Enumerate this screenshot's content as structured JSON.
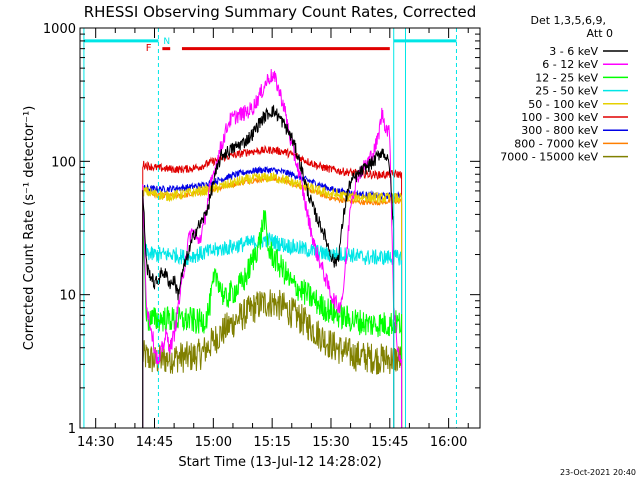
{
  "chart_data": {
    "type": "line",
    "title": "RHESSI Observing Summary Count Rates, Corrected",
    "xlabel": "Start Time (13-Jul-12 14:28:02)",
    "ylabel": "Corrected Count Rate (s⁻¹ detector⁻¹)",
    "yscale": "log",
    "xlim": [
      "14:26",
      "16:08"
    ],
    "ylim": [
      1,
      1000
    ],
    "x_ticks": [
      "14:30",
      "14:45",
      "15:00",
      "15:15",
      "15:30",
      "15:45",
      "16:00"
    ],
    "y_ticks": [
      "1",
      "10",
      "100",
      "1000"
    ],
    "grid": false,
    "legend_position": "top-right",
    "legend_header": [
      "Det 1,3,5,6,9,",
      "Att 0"
    ],
    "timestamp": "23-Oct-2021 20:40",
    "annotations": {
      "flare_flag": "F",
      "night_flag": "N"
    },
    "flag_bars": [
      {
        "name": "cyan-bar-left",
        "color": "#00e6e6",
        "x": [
          "14:27",
          "14:46"
        ],
        "y": 800
      },
      {
        "name": "cyan-bar-right",
        "color": "#00e6e6",
        "x": [
          "15:46",
          "16:02"
        ],
        "y": 800
      },
      {
        "name": "red-bar-a",
        "color": "#e00000",
        "x": [
          "14:47",
          "14:49"
        ],
        "y": 700
      },
      {
        "name": "red-bar-b",
        "color": "#e00000",
        "x": [
          "14:52",
          "15:45"
        ],
        "y": 700
      }
    ],
    "vlines": [
      {
        "x": "14:27",
        "style": "solid",
        "color": "#00e6e6"
      },
      {
        "x": "14:46",
        "style": "dashed",
        "color": "#00e6e6"
      },
      {
        "x": "15:46",
        "style": "solid",
        "color": "#00e6e6"
      },
      {
        "x": "15:49",
        "style": "solid",
        "color": "#00e6e6"
      },
      {
        "x": "16:02",
        "style": "dashed",
        "color": "#00e6e6"
      }
    ],
    "series": [
      {
        "name": "3 - 6 keV",
        "color": "#000000",
        "noise": 0.05,
        "points": [
          [
            "14:42",
            60
          ],
          [
            "14:43",
            16
          ],
          [
            "14:44",
            14
          ],
          [
            "14:45",
            12
          ],
          [
            "14:46",
            13
          ],
          [
            "14:47",
            15
          ],
          [
            "14:48",
            14
          ],
          [
            "14:49",
            12
          ],
          [
            "14:50",
            13
          ],
          [
            "14:51",
            10
          ],
          [
            "14:52",
            14
          ],
          [
            "14:53",
            18
          ],
          [
            "14:54",
            22
          ],
          [
            "14:55",
            28
          ],
          [
            "14:56",
            32
          ],
          [
            "14:57",
            35
          ],
          [
            "14:58",
            40
          ],
          [
            "14:59",
            50
          ],
          [
            "15:00",
            70
          ],
          [
            "15:02",
            110
          ],
          [
            "15:04",
            120
          ],
          [
            "15:06",
            130
          ],
          [
            "15:08",
            140
          ],
          [
            "15:10",
            160
          ],
          [
            "15:12",
            200
          ],
          [
            "15:14",
            230
          ],
          [
            "15:15",
            240
          ],
          [
            "15:16",
            230
          ],
          [
            "15:18",
            190
          ],
          [
            "15:20",
            150
          ],
          [
            "15:22",
            100
          ],
          [
            "15:24",
            60
          ],
          [
            "15:26",
            40
          ],
          [
            "15:28",
            30
          ],
          [
            "15:30",
            20
          ],
          [
            "15:31",
            17
          ],
          [
            "15:32",
            20
          ],
          [
            "15:33",
            35
          ],
          [
            "15:34",
            55
          ],
          [
            "15:35",
            70
          ],
          [
            "15:37",
            80
          ],
          [
            "15:39",
            90
          ],
          [
            "15:41",
            100
          ],
          [
            "15:42",
            110
          ],
          [
            "15:43",
            120
          ],
          [
            "15:44",
            110
          ],
          [
            "15:45",
            90
          ],
          [
            "15:46",
            30
          ]
        ]
      },
      {
        "name": "6 - 12 keV",
        "color": "#ff00ff",
        "noise": 0.06,
        "points": [
          [
            "14:42",
            60
          ],
          [
            "14:43",
            8
          ],
          [
            "14:44",
            6
          ],
          [
            "14:45",
            4
          ],
          [
            "14:46",
            3
          ],
          [
            "14:47",
            4
          ],
          [
            "14:48",
            5
          ],
          [
            "14:49",
            4
          ],
          [
            "14:50",
            5
          ],
          [
            "14:51",
            8
          ],
          [
            "14:52",
            12
          ],
          [
            "14:53",
            20
          ],
          [
            "14:54",
            28
          ],
          [
            "14:55",
            30
          ],
          [
            "14:56",
            25
          ],
          [
            "14:57",
            28
          ],
          [
            "14:58",
            40
          ],
          [
            "14:59",
            60
          ],
          [
            "15:00",
            80
          ],
          [
            "15:02",
            130
          ],
          [
            "15:04",
            200
          ],
          [
            "15:06",
            220
          ],
          [
            "15:08",
            230
          ],
          [
            "15:10",
            250
          ],
          [
            "15:12",
            320
          ],
          [
            "15:14",
            420
          ],
          [
            "15:15",
            440
          ],
          [
            "15:16",
            400
          ],
          [
            "15:18",
            260
          ],
          [
            "15:20",
            130
          ],
          [
            "15:22",
            80
          ],
          [
            "15:24",
            40
          ],
          [
            "15:26",
            22
          ],
          [
            "15:28",
            15
          ],
          [
            "15:30",
            10
          ],
          [
            "15:32",
            8
          ],
          [
            "15:33",
            10
          ],
          [
            "15:34",
            20
          ],
          [
            "15:35",
            50
          ],
          [
            "15:37",
            80
          ],
          [
            "15:39",
            95
          ],
          [
            "15:41",
            120
          ],
          [
            "15:42",
            150
          ],
          [
            "15:43",
            230
          ],
          [
            "15:44",
            180
          ],
          [
            "15:45",
            160
          ],
          [
            "15:46",
            8
          ],
          [
            "15:47",
            4
          ],
          [
            "15:48",
            3
          ]
        ]
      },
      {
        "name": "12 - 25 keV",
        "color": "#00ff00",
        "noise": 0.1,
        "points": [
          [
            "14:42",
            33
          ],
          [
            "14:43",
            6.5
          ],
          [
            "14:45",
            6.5
          ],
          [
            "14:48",
            6.6
          ],
          [
            "14:50",
            6.5
          ],
          [
            "14:52",
            6.4
          ],
          [
            "14:54",
            6.5
          ],
          [
            "14:56",
            6.2
          ],
          [
            "14:58",
            6.5
          ],
          [
            "14:59",
            8
          ],
          [
            "15:00",
            12
          ],
          [
            "15:01",
            14
          ],
          [
            "15:02",
            11
          ],
          [
            "15:03",
            9
          ],
          [
            "15:04",
            10
          ],
          [
            "15:06",
            11
          ],
          [
            "15:08",
            13
          ],
          [
            "15:10",
            18
          ],
          [
            "15:12",
            26
          ],
          [
            "15:13",
            40
          ],
          [
            "15:14",
            22
          ],
          [
            "15:16",
            18
          ],
          [
            "15:18",
            15
          ],
          [
            "15:20",
            12
          ],
          [
            "15:22",
            11
          ],
          [
            "15:24",
            10
          ],
          [
            "15:26",
            9
          ],
          [
            "15:28",
            8
          ],
          [
            "15:30",
            7.5
          ],
          [
            "15:32",
            7
          ],
          [
            "15:35",
            6.5
          ],
          [
            "15:40",
            6
          ],
          [
            "15:45",
            6
          ],
          [
            "15:46",
            6.2
          ],
          [
            "15:48",
            6
          ]
        ]
      },
      {
        "name": "25 - 50 keV",
        "color": "#00e6e6",
        "noise": 0.06,
        "points": [
          [
            "14:42",
            22
          ],
          [
            "14:44",
            20
          ],
          [
            "14:47",
            20
          ],
          [
            "14:50",
            20
          ],
          [
            "14:53",
            19
          ],
          [
            "14:56",
            20
          ],
          [
            "14:59",
            21
          ],
          [
            "15:02",
            22
          ],
          [
            "15:05",
            23
          ],
          [
            "15:08",
            24
          ],
          [
            "15:11",
            25
          ],
          [
            "15:14",
            26
          ],
          [
            "15:17",
            24
          ],
          [
            "15:20",
            23
          ],
          [
            "15:23",
            22
          ],
          [
            "15:26",
            21
          ],
          [
            "15:29",
            20
          ],
          [
            "15:32",
            20
          ],
          [
            "15:35",
            20
          ],
          [
            "15:38",
            19
          ],
          [
            "15:41",
            19
          ],
          [
            "15:44",
            19
          ],
          [
            "15:46",
            19
          ],
          [
            "15:48",
            19
          ]
        ]
      },
      {
        "name": "50 - 100 keV",
        "color": "#e6d000",
        "noise": 0.04,
        "points": [
          [
            "14:42",
            60
          ],
          [
            "14:45",
            57
          ],
          [
            "14:48",
            55
          ],
          [
            "14:51",
            56
          ],
          [
            "14:54",
            58
          ],
          [
            "14:57",
            60
          ],
          [
            "15:00",
            62
          ],
          [
            "15:03",
            66
          ],
          [
            "15:06",
            70
          ],
          [
            "15:09",
            73
          ],
          [
            "15:12",
            75
          ],
          [
            "15:15",
            76
          ],
          [
            "15:18",
            73
          ],
          [
            "15:21",
            68
          ],
          [
            "15:24",
            64
          ],
          [
            "15:27",
            60
          ],
          [
            "15:30",
            57
          ],
          [
            "15:33",
            55
          ],
          [
            "15:36",
            54
          ],
          [
            "15:39",
            54
          ],
          [
            "15:42",
            53
          ],
          [
            "15:45",
            53
          ],
          [
            "15:48",
            53
          ]
        ]
      },
      {
        "name": "100 - 300 keV",
        "color": "#e00000",
        "noise": 0.03,
        "points": [
          [
            "14:42",
            95
          ],
          [
            "14:45",
            90
          ],
          [
            "14:48",
            88
          ],
          [
            "14:51",
            87
          ],
          [
            "14:54",
            88
          ],
          [
            "14:57",
            92
          ],
          [
            "15:00",
            100
          ],
          [
            "15:03",
            108
          ],
          [
            "15:06",
            112
          ],
          [
            "15:09",
            118
          ],
          [
            "15:12",
            120
          ],
          [
            "15:15",
            122
          ],
          [
            "15:18",
            118
          ],
          [
            "15:21",
            110
          ],
          [
            "15:24",
            100
          ],
          [
            "15:27",
            92
          ],
          [
            "15:30",
            87
          ],
          [
            "15:33",
            84
          ],
          [
            "15:36",
            82
          ],
          [
            "15:39",
            80
          ],
          [
            "15:42",
            79
          ],
          [
            "15:45",
            80
          ],
          [
            "15:48",
            80
          ]
        ]
      },
      {
        "name": "300 - 800 keV",
        "color": "#0000e6",
        "noise": 0.025,
        "points": [
          [
            "14:42",
            63
          ],
          [
            "14:45",
            62
          ],
          [
            "14:48",
            62
          ],
          [
            "14:51",
            63
          ],
          [
            "14:54",
            64
          ],
          [
            "14:57",
            66
          ],
          [
            "15:00",
            70
          ],
          [
            "15:03",
            75
          ],
          [
            "15:06",
            80
          ],
          [
            "15:09",
            84
          ],
          [
            "15:12",
            86
          ],
          [
            "15:15",
            86
          ],
          [
            "15:18",
            83
          ],
          [
            "15:21",
            78
          ],
          [
            "15:24",
            72
          ],
          [
            "15:27",
            67
          ],
          [
            "15:30",
            62
          ],
          [
            "15:33",
            59
          ],
          [
            "15:36",
            57
          ],
          [
            "15:39",
            56
          ],
          [
            "15:42",
            55
          ],
          [
            "15:45",
            55
          ],
          [
            "15:48",
            55
          ]
        ]
      },
      {
        "name": "800 - 7000 keV",
        "color": "#ff7f00",
        "noise": 0.02,
        "points": [
          [
            "14:42",
            63
          ],
          [
            "14:45",
            56
          ],
          [
            "14:48",
            55
          ],
          [
            "14:51",
            55
          ],
          [
            "14:54",
            56
          ],
          [
            "14:57",
            59
          ],
          [
            "15:00",
            62
          ],
          [
            "15:03",
            65
          ],
          [
            "15:06",
            68
          ],
          [
            "15:09",
            71
          ],
          [
            "15:12",
            73
          ],
          [
            "15:15",
            74
          ],
          [
            "15:18",
            72
          ],
          [
            "15:21",
            67
          ],
          [
            "15:24",
            62
          ],
          [
            "15:27",
            57
          ],
          [
            "15:30",
            53
          ],
          [
            "15:33",
            51
          ],
          [
            "15:36",
            50
          ],
          [
            "15:39",
            49
          ],
          [
            "15:42",
            49
          ],
          [
            "15:45",
            50
          ],
          [
            "15:48",
            50
          ]
        ]
      },
      {
        "name": "7000 - 15000 keV",
        "color": "#808000",
        "noise": 0.12,
        "points": [
          [
            "14:42",
            3.5
          ],
          [
            "14:45",
            3.2
          ],
          [
            "14:48",
            3.3
          ],
          [
            "14:51",
            3.4
          ],
          [
            "14:54",
            3.4
          ],
          [
            "14:57",
            3.6
          ],
          [
            "15:00",
            4.5
          ],
          [
            "15:03",
            5.5
          ],
          [
            "15:06",
            6.5
          ],
          [
            "15:09",
            7.5
          ],
          [
            "15:12",
            8.5
          ],
          [
            "15:15",
            8.8
          ],
          [
            "15:18",
            8
          ],
          [
            "15:21",
            7
          ],
          [
            "15:24",
            6
          ],
          [
            "15:27",
            5
          ],
          [
            "15:30",
            4.2
          ],
          [
            "15:33",
            3.8
          ],
          [
            "15:36",
            3.5
          ],
          [
            "15:39",
            3.4
          ],
          [
            "15:42",
            3.3
          ],
          [
            "15:45",
            3.3
          ],
          [
            "15:48",
            3.3
          ]
        ]
      }
    ]
  }
}
